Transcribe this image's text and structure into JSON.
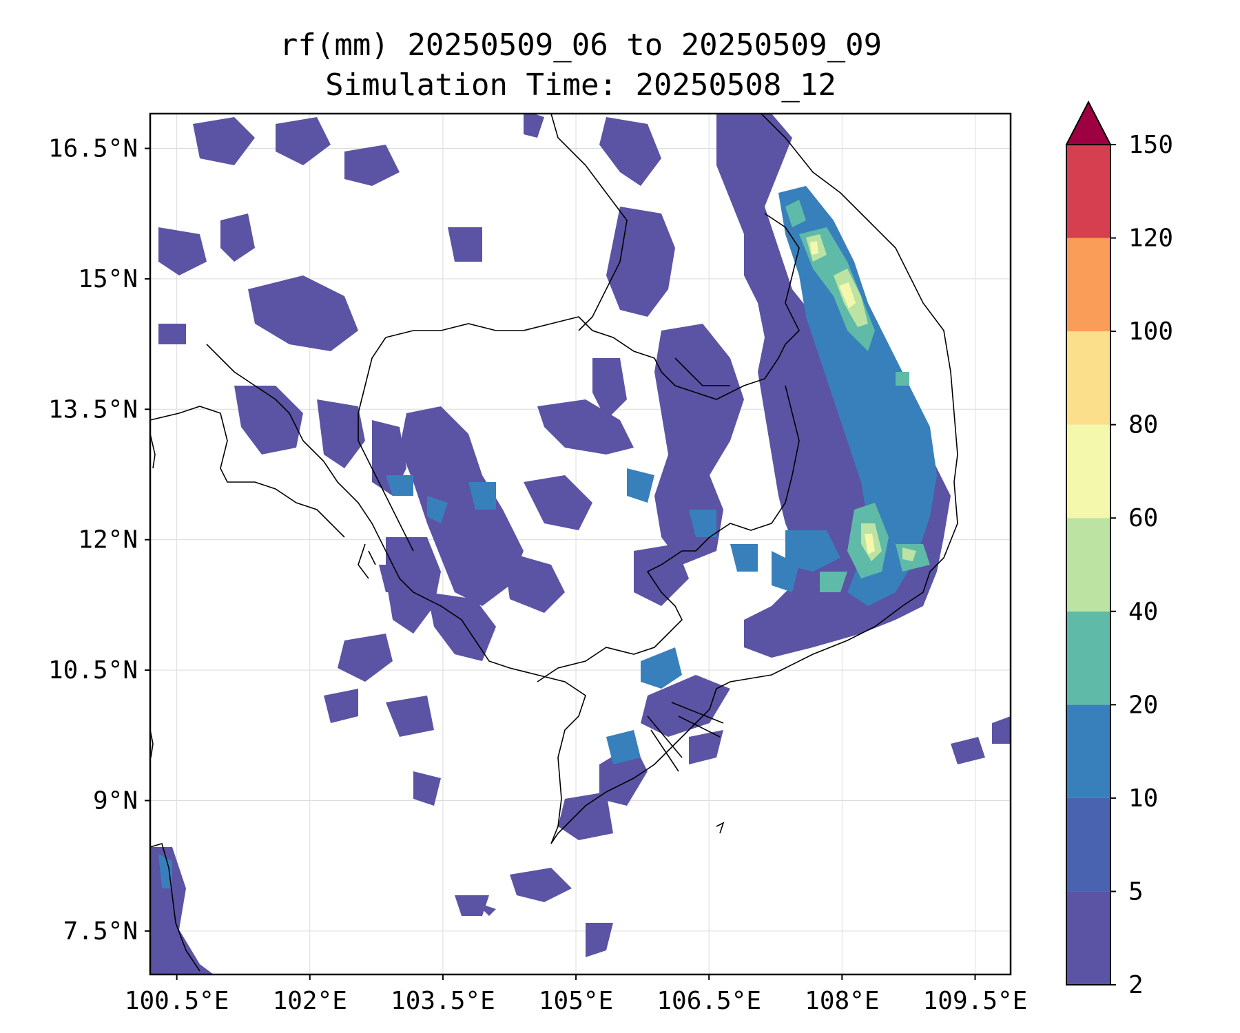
{
  "title": {
    "line1": "rf(mm) 20250509_06 to 20250509_09",
    "line2": "Simulation Time: 20250508_12"
  },
  "map": {
    "lon_range": [
      100.2,
      109.9
    ],
    "lat_range": [
      7.0,
      16.9
    ],
    "lon_ticks": [
      100.5,
      102,
      103.5,
      105,
      106.5,
      108,
      109.5
    ],
    "lon_tick_labels": [
      "100.5°E",
      "102°E",
      "103.5°E",
      "105°E",
      "106.5°E",
      "108°E",
      "109.5°E"
    ],
    "lat_ticks": [
      7.5,
      9,
      10.5,
      12,
      13.5,
      15,
      16.5
    ],
    "lat_tick_labels": [
      "7.5°N",
      "9°N",
      "10.5°N",
      "12°N",
      "13.5°N",
      "15°N",
      "16.5°N"
    ],
    "gridlines": true
  },
  "colorbar": {
    "levels": [
      2,
      5,
      10,
      20,
      40,
      60,
      80,
      100,
      120,
      150
    ],
    "level_labels": [
      "2",
      "5",
      "10",
      "20",
      "40",
      "60",
      "80",
      "100",
      "120",
      "150"
    ],
    "colors": [
      "#5b53a4",
      "#4a63b0",
      "#3880bb",
      "#5fbaa8",
      "#bde3a3",
      "#f3f8ad",
      "#fcdf8a",
      "#f99d59",
      "#d63f50"
    ],
    "extend_color": "#9e0142",
    "extend": "max"
  },
  "rain_colors": {
    "c2": "#5b53a4",
    "c10": "#3880bb",
    "c20": "#5fbaa8",
    "c40": "#bde3a3",
    "c60": "#f3f8ad"
  }
}
